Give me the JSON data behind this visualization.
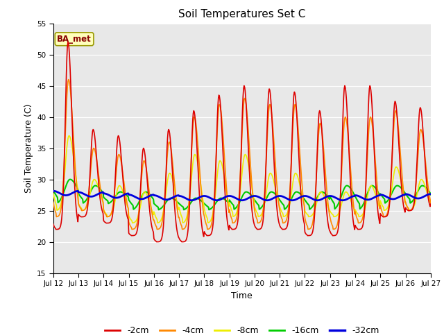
{
  "title": "Soil Temperatures Set C",
  "xlabel": "Time",
  "ylabel": "Soil Temperature (C)",
  "xlim": [
    0,
    360
  ],
  "ylim": [
    15,
    55
  ],
  "yticks": [
    15,
    20,
    25,
    30,
    35,
    40,
    45,
    50,
    55
  ],
  "bg_color": "#e8e8e8",
  "legend_label": "BA_met",
  "series_colors": {
    "-2cm": "#dd0000",
    "-4cm": "#ff8800",
    "-8cm": "#eeee00",
    "-16cm": "#00cc00",
    "-32cm": "#0000dd"
  },
  "series_lw": {
    "-2cm": 1.2,
    "-4cm": 1.2,
    "-8cm": 1.2,
    "-16cm": 1.5,
    "-32cm": 2.0
  },
  "xtick_positions": [
    0,
    24,
    48,
    72,
    96,
    120,
    144,
    168,
    192,
    216,
    240,
    264,
    288,
    312,
    336,
    360
  ],
  "xtick_labels": [
    "Jul 12",
    "Jul 13",
    "Jul 14",
    "Jul 15",
    "Jul 16",
    "Jul 17",
    "Jul 18",
    "Jul 19",
    "Jul 20",
    "Jul 21",
    "Jul 22",
    "Jul 23",
    "Jul 24",
    "Jul 25",
    "Jul 26",
    "Jul 27"
  ],
  "peak2": [
    52,
    38,
    37,
    35,
    38,
    41,
    43.5,
    45,
    44.5,
    44,
    41,
    45,
    45,
    42.5,
    41.5,
    28
  ],
  "min2": [
    22,
    24,
    23,
    21,
    20,
    20,
    21,
    22,
    22,
    22,
    21,
    21,
    22,
    24,
    25,
    26
  ],
  "peak4": [
    46,
    35,
    34,
    33,
    36,
    40,
    42,
    43,
    42,
    42,
    39,
    40,
    40,
    41,
    38,
    28
  ],
  "min4": [
    24,
    25,
    24,
    22,
    22,
    22,
    22,
    23,
    23,
    23,
    22,
    22,
    23,
    24,
    25,
    26
  ],
  "peak8": [
    37,
    30,
    29,
    28,
    31,
    34,
    33,
    34,
    31,
    31,
    28,
    28,
    29,
    32,
    30,
    29
  ],
  "min8": [
    25,
    25,
    24,
    23,
    23,
    23,
    23,
    24,
    24,
    24,
    24,
    24,
    24,
    25,
    25,
    26
  ],
  "peak16": [
    30,
    29,
    28,
    28,
    27,
    27,
    27,
    28,
    28,
    28,
    28,
    29,
    29,
    29,
    29,
    28
  ],
  "min16": [
    26,
    26,
    26,
    25,
    25,
    25,
    25,
    25,
    25,
    25,
    25,
    25,
    25,
    26,
    26,
    27
  ],
  "base32": [
    27.8,
    27.6,
    27.4,
    27.2,
    27.1,
    27.0,
    27.0,
    27.0,
    27.0,
    27.0,
    27.0,
    27.0,
    27.1,
    27.2,
    27.3,
    27.3
  ],
  "amp32": 0.35
}
